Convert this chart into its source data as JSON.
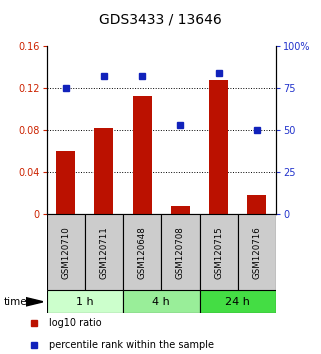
{
  "title": "GDS3433 / 13646",
  "samples": [
    "GSM120710",
    "GSM120711",
    "GSM120648",
    "GSM120708",
    "GSM120715",
    "GSM120716"
  ],
  "log10_ratio": [
    0.06,
    0.082,
    0.112,
    0.008,
    0.128,
    0.018
  ],
  "percentile_rank": [
    75,
    82,
    82,
    53,
    84,
    50
  ],
  "left_ylim": [
    0,
    0.16
  ],
  "right_ylim": [
    0,
    100
  ],
  "left_yticks": [
    0,
    0.04,
    0.08,
    0.12,
    0.16
  ],
  "right_yticks": [
    0,
    25,
    50,
    75,
    100
  ],
  "left_yticklabels": [
    "0",
    "0.04",
    "0.08",
    "0.12",
    "0.16"
  ],
  "right_yticklabels": [
    "0",
    "25",
    "50",
    "75",
    "100%"
  ],
  "dotted_lines": [
    0.04,
    0.08,
    0.12
  ],
  "bar_color": "#bb1100",
  "dot_color": "#1122bb",
  "time_groups": [
    {
      "label": "1 h",
      "indices": [
        0,
        1
      ],
      "color": "#ccffcc"
    },
    {
      "label": "4 h",
      "indices": [
        2,
        3
      ],
      "color": "#99ee99"
    },
    {
      "label": "24 h",
      "indices": [
        4,
        5
      ],
      "color": "#44dd44"
    }
  ],
  "sample_box_color": "#cccccc",
  "xlabel_time": "time",
  "legend_items": [
    {
      "label": "log10 ratio",
      "color": "#bb1100"
    },
    {
      "label": "percentile rank within the sample",
      "color": "#1122bb"
    }
  ],
  "title_fontsize": 10,
  "tick_fontsize": 7,
  "left_tick_color": "#cc2200",
  "right_tick_color": "#2233cc"
}
